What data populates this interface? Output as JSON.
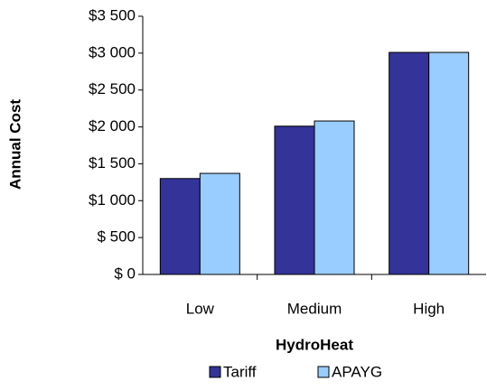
{
  "chart_data": {
    "type": "bar",
    "x_label": "HydroHeat",
    "y_label": "Annual Cost",
    "categories": [
      "Low",
      "Medium",
      "High"
    ],
    "series": [
      {
        "name": "Tariff",
        "color": "#333399",
        "values": [
          1300,
          2010,
          3010
        ]
      },
      {
        "name": "APAYG",
        "color": "#99ccff",
        "values": [
          1370,
          2080,
          3010
        ]
      }
    ],
    "ylim": [
      0,
      3500
    ],
    "yticks": [
      {
        "value": 0,
        "label": "$ 0"
      },
      {
        "value": 500,
        "label": "$ 500"
      },
      {
        "value": 1000,
        "label": "$1 000"
      },
      {
        "value": 1500,
        "label": "$1 500"
      },
      {
        "value": 2000,
        "label": "$2 000"
      },
      {
        "value": 2500,
        "label": "$2 500"
      },
      {
        "value": 3000,
        "label": "$3 000"
      },
      {
        "value": 3500,
        "label": "$3 500"
      }
    ],
    "grid": false,
    "legend": "bottom"
  }
}
